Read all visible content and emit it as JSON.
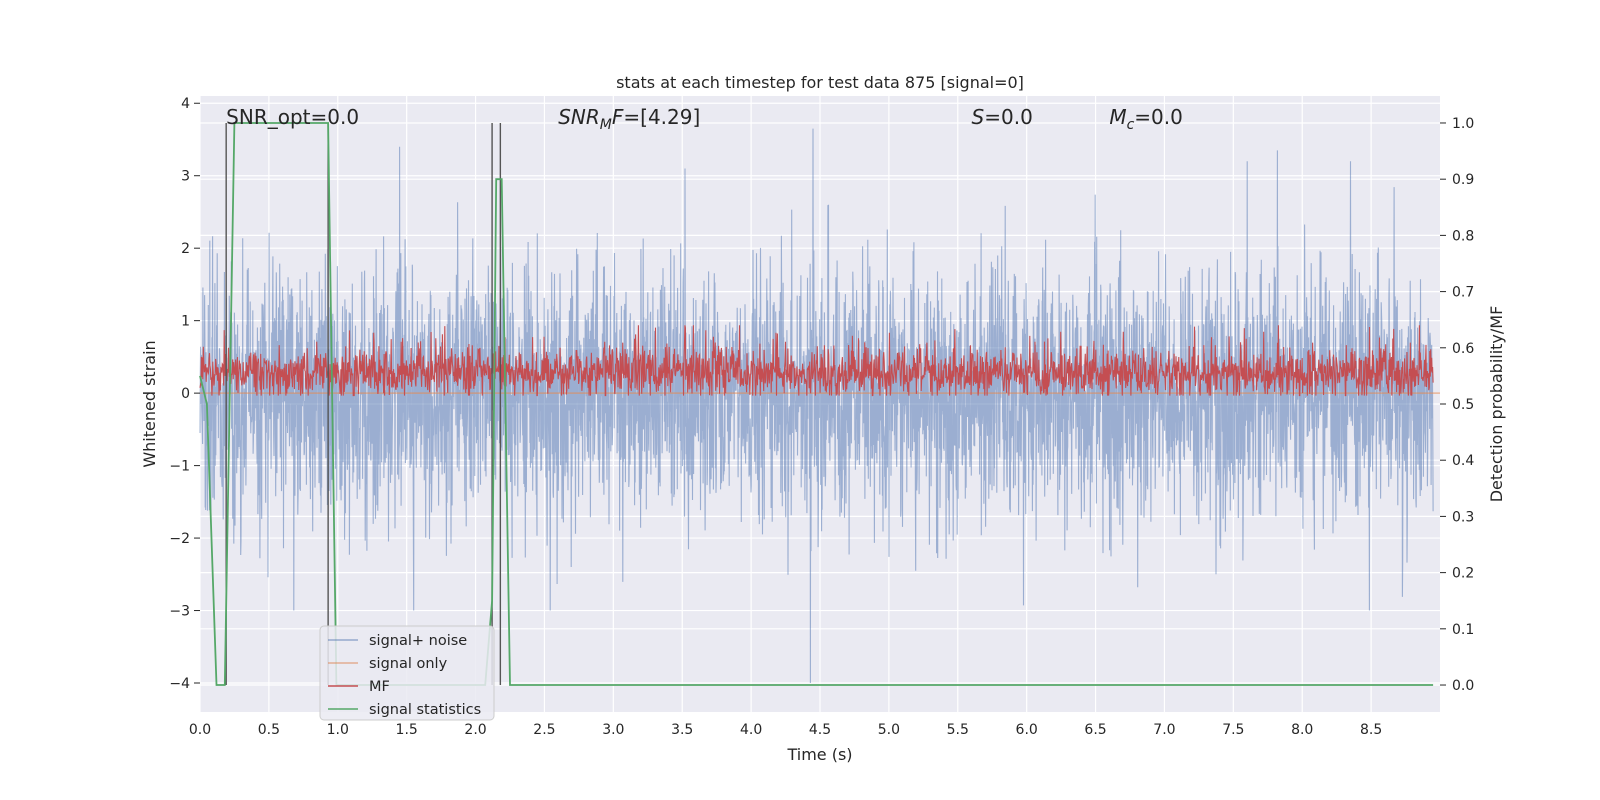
{
  "chart_data": {
    "type": "line",
    "title": "stats at each timestep for test data 875 [signal=0]",
    "xlabel": "Time (s)",
    "ylabel": "Whitened strain",
    "ylabel_right": "Detection probability/MF",
    "xlim": [
      0.0,
      9.0
    ],
    "ylim": [
      -4.4,
      4.1
    ],
    "ylim_right": [
      -0.048,
      1.048
    ],
    "xticks": [
      0.0,
      0.5,
      1.0,
      1.5,
      2.0,
      2.5,
      3.0,
      3.5,
      4.0,
      4.5,
      5.0,
      5.5,
      6.0,
      6.5,
      7.0,
      7.5,
      8.0,
      8.5
    ],
    "xtick_labels": [
      "0.0",
      "0.5",
      "1.0",
      "1.5",
      "2.0",
      "2.5",
      "3.0",
      "3.5",
      "4.0",
      "4.5",
      "5.0",
      "5.5",
      "6.0",
      "6.5",
      "7.0",
      "7.5",
      "8.0",
      "8.5"
    ],
    "yticks": [
      -4,
      -3,
      -2,
      -1,
      0,
      1,
      2,
      3,
      4
    ],
    "ytick_labels": [
      "−4",
      "−3",
      "−2",
      "−1",
      "0",
      "1",
      "2",
      "3",
      "4"
    ],
    "yticks_right": [
      0.0,
      0.1,
      0.2,
      0.3,
      0.4,
      0.5,
      0.6,
      0.7,
      0.8,
      0.9,
      1.0
    ],
    "ytick_right_labels": [
      "0.0",
      "0.1",
      "0.2",
      "0.3",
      "0.4",
      "0.5",
      "0.6",
      "0.7",
      "0.8",
      "0.9",
      "1.0"
    ],
    "grid": true,
    "legend_position": "lower-left",
    "annotations": [
      {
        "text": "SNR_opt=0.0",
        "x": 0.19
      },
      {
        "text": "SNR_MF=[4.29]",
        "x": 2.6
      },
      {
        "text": "S=0.0",
        "x": 5.6
      },
      {
        "text": "M_c=0.0",
        "x": 6.6
      }
    ],
    "series": [
      {
        "name": "signal+ noise",
        "color": "#4c72b0",
        "axis": "left",
        "description": "whitened noise, roughly symmetric around 0 with amplitude ~±1.5, peaks near ±3.7",
        "peaks": [
          {
            "x": 4.45,
            "y": 3.65
          },
          {
            "x": 4.43,
            "y": -4.0
          },
          {
            "x": 1.45,
            "y": 3.4
          },
          {
            "x": 7.82,
            "y": 3.35
          },
          {
            "x": 7.6,
            "y": 3.2
          },
          {
            "x": 8.35,
            "y": 3.2
          },
          {
            "x": 3.52,
            "y": 3.1
          },
          {
            "x": 1.55,
            "y": -3.0
          },
          {
            "x": 0.68,
            "y": -3.0
          }
        ]
      },
      {
        "name": "signal only",
        "color": "#dd8452",
        "axis": "left",
        "x": [
          0.0,
          9.0
        ],
        "y": [
          0.0,
          0.0
        ]
      },
      {
        "name": "MF",
        "color": "#c44e52",
        "axis": "right",
        "description": "matched-filter output fluctuating around 0.55 between ~0.52 and 0.63"
      },
      {
        "name": "signal statistics",
        "color": "#55a868",
        "axis": "right",
        "x": [
          0.0,
          0.05,
          0.12,
          0.18,
          0.25,
          0.3,
          0.93,
          0.99,
          2.07,
          2.12,
          2.15,
          2.19,
          2.25,
          8.95
        ],
        "y": [
          0.55,
          0.5,
          0.0,
          0.0,
          1.0,
          1.0,
          1.0,
          0.0,
          0.0,
          0.15,
          0.9,
          0.9,
          0.0,
          0.0
        ]
      }
    ],
    "vertical_markers_x": [
      0.19,
      0.93,
      2.12,
      2.18
    ]
  },
  "legend": {
    "items": [
      {
        "label": "signal+ noise",
        "color": "#4c72b0"
      },
      {
        "label": "signal only",
        "color": "#dd8452"
      },
      {
        "label": "MF",
        "color": "#c44e52"
      },
      {
        "label": "signal statistics",
        "color": "#55a868"
      }
    ]
  },
  "colors": {
    "axes_background": "#eaeaf2",
    "grid": "#ffffff",
    "noise": "#4c72b0",
    "signal_only": "#dd8452",
    "mf": "#c44e52",
    "statistics": "#55a868",
    "markers": "#555555"
  }
}
